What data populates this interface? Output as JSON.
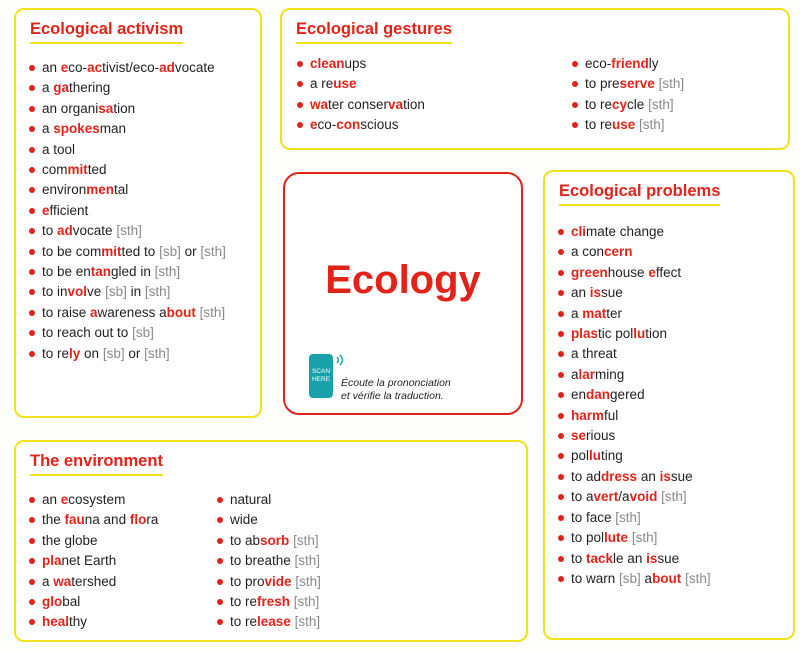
{
  "center": {
    "title": "Ecology",
    "scan": "SCAN HERE",
    "note": [
      "Écoute la prononciation",
      "et vérifie la traduction."
    ]
  },
  "sections": [
    {
      "title": "Ecological activism",
      "columns": [
        [
          [
            {
              "p": "an "
            },
            {
              "r": "e"
            },
            {
              "p": "co-"
            },
            {
              "r": "ac"
            },
            {
              "p": "tivist/eco-"
            },
            {
              "r": "ad"
            },
            {
              "p": "vocate"
            }
          ],
          [
            {
              "p": "a "
            },
            {
              "r": "ga"
            },
            {
              "p": "thering"
            }
          ],
          [
            {
              "p": "an organi"
            },
            {
              "r": "sa"
            },
            {
              "p": "tion"
            }
          ],
          [
            {
              "p": "a "
            },
            {
              "r": "spokes"
            },
            {
              "p": "man"
            }
          ],
          [
            {
              "p": "a tool"
            }
          ],
          [
            {
              "p": "com"
            },
            {
              "r": "mit"
            },
            {
              "p": "ted"
            }
          ],
          [
            {
              "p": "environ"
            },
            {
              "r": "men"
            },
            {
              "p": "tal"
            }
          ],
          [
            {
              "r": "e"
            },
            {
              "p": "fficient"
            }
          ],
          [
            {
              "p": "to "
            },
            {
              "r": "ad"
            },
            {
              "p": "vocate "
            },
            {
              "g": "[sth]"
            }
          ],
          [
            {
              "p": "to be com"
            },
            {
              "r": "mit"
            },
            {
              "p": "ted to "
            },
            {
              "g": "[sb]"
            },
            {
              "p": " or "
            },
            {
              "g": "[sth]"
            }
          ],
          [
            {
              "p": "to be en"
            },
            {
              "r": "tan"
            },
            {
              "p": "gled in "
            },
            {
              "g": "[sth]"
            }
          ],
          [
            {
              "p": "to in"
            },
            {
              "r": "vol"
            },
            {
              "p": "ve "
            },
            {
              "g": "[sb]"
            },
            {
              "p": " in "
            },
            {
              "g": "[sth]"
            }
          ],
          [
            {
              "p": "to raise "
            },
            {
              "r": "a"
            },
            {
              "p": "wareness a"
            },
            {
              "r": "bout"
            },
            {
              "p": " "
            },
            {
              "g": "[sth]"
            }
          ],
          [
            {
              "p": "to reach out to "
            },
            {
              "g": "[sb]"
            }
          ],
          [
            {
              "p": "to re"
            },
            {
              "r": "ly"
            },
            {
              "p": " on "
            },
            {
              "g": "[sb]"
            },
            {
              "p": " or "
            },
            {
              "g": "[sth]"
            }
          ]
        ]
      ]
    },
    {
      "title": "Ecological gestures",
      "columns": [
        [
          [
            {
              "r": "clean"
            },
            {
              "p": "ups"
            }
          ],
          [
            {
              "p": "a re"
            },
            {
              "r": "use"
            }
          ],
          [
            {
              "r": "wa"
            },
            {
              "p": "ter conser"
            },
            {
              "r": "va"
            },
            {
              "p": "tion"
            }
          ],
          [
            {
              "r": "e"
            },
            {
              "p": "co-"
            },
            {
              "r": "con"
            },
            {
              "p": "scious"
            }
          ]
        ],
        [
          [
            {
              "p": "eco-"
            },
            {
              "r": "friend"
            },
            {
              "p": "ly"
            }
          ],
          [
            {
              "p": "to pre"
            },
            {
              "r": "serve"
            },
            {
              "p": " "
            },
            {
              "g": "[sth]"
            }
          ],
          [
            {
              "p": "to re"
            },
            {
              "r": "cy"
            },
            {
              "p": "cle "
            },
            {
              "g": "[sth]"
            }
          ],
          [
            {
              "p": "to re"
            },
            {
              "r": "use"
            },
            {
              "p": " "
            },
            {
              "g": "[sth]"
            }
          ]
        ]
      ]
    },
    {
      "title": "Ecological problems",
      "columns": [
        [
          [
            {
              "r": "cli"
            },
            {
              "p": "mate change"
            }
          ],
          [
            {
              "p": "a con"
            },
            {
              "r": "cern"
            }
          ],
          [
            {
              "r": "green"
            },
            {
              "p": "house "
            },
            {
              "r": "e"
            },
            {
              "p": "ffect"
            }
          ],
          [
            {
              "p": "an "
            },
            {
              "r": "is"
            },
            {
              "p": "sue"
            }
          ],
          [
            {
              "p": "a "
            },
            {
              "r": "mat"
            },
            {
              "p": "ter"
            }
          ],
          [
            {
              "r": "plas"
            },
            {
              "p": "tic pol"
            },
            {
              "r": "lu"
            },
            {
              "p": "tion"
            }
          ],
          [
            {
              "p": "a threat"
            }
          ],
          [
            {
              "p": "a"
            },
            {
              "r": "lar"
            },
            {
              "p": "ming"
            }
          ],
          [
            {
              "p": "en"
            },
            {
              "r": "dan"
            },
            {
              "p": "gered"
            }
          ],
          [
            {
              "r": "harm"
            },
            {
              "p": "ful"
            }
          ],
          [
            {
              "r": "se"
            },
            {
              "p": "rious"
            }
          ],
          [
            {
              "p": "pol"
            },
            {
              "r": "lu"
            },
            {
              "p": "ting"
            }
          ],
          [
            {
              "p": "to ad"
            },
            {
              "r": "dress"
            },
            {
              "p": " an "
            },
            {
              "r": "is"
            },
            {
              "p": "sue"
            }
          ],
          [
            {
              "p": "to a"
            },
            {
              "r": "vert"
            },
            {
              "p": "/a"
            },
            {
              "r": "void"
            },
            {
              "p": " "
            },
            {
              "g": "[sth]"
            }
          ],
          [
            {
              "p": "to face "
            },
            {
              "g": "[sth]"
            }
          ],
          [
            {
              "p": "to pol"
            },
            {
              "r": "lute"
            },
            {
              "p": " "
            },
            {
              "g": "[sth]"
            }
          ],
          [
            {
              "p": "to "
            },
            {
              "r": "tack"
            },
            {
              "p": "le an "
            },
            {
              "r": "is"
            },
            {
              "p": "sue"
            }
          ],
          [
            {
              "p": "to warn "
            },
            {
              "g": "[sb]"
            },
            {
              "p": " a"
            },
            {
              "r": "bout"
            },
            {
              "p": " "
            },
            {
              "g": "[sth]"
            }
          ]
        ]
      ]
    },
    {
      "title": "The environment",
      "columns": [
        [
          [
            {
              "p": "an "
            },
            {
              "r": "e"
            },
            {
              "p": "cosystem"
            }
          ],
          [
            {
              "p": "the "
            },
            {
              "r": "fau"
            },
            {
              "p": "na and "
            },
            {
              "r": "flo"
            },
            {
              "p": "ra"
            }
          ],
          [
            {
              "p": "the globe"
            }
          ],
          [
            {
              "r": "pla"
            },
            {
              "p": "net Earth"
            }
          ],
          [
            {
              "p": "a "
            },
            {
              "r": "wa"
            },
            {
              "p": "tershed"
            }
          ],
          [
            {
              "r": "glo"
            },
            {
              "p": "bal"
            }
          ],
          [
            {
              "r": "heal"
            },
            {
              "p": "thy"
            }
          ]
        ],
        [
          [
            {
              "p": "natural"
            }
          ],
          [
            {
              "p": "wide"
            }
          ],
          [
            {
              "p": "to ab"
            },
            {
              "r": "sorb"
            },
            {
              "p": " "
            },
            {
              "g": "[sth]"
            }
          ],
          [
            {
              "p": "to breathe "
            },
            {
              "g": "[sth]"
            }
          ],
          [
            {
              "p": "to pro"
            },
            {
              "r": "vide"
            },
            {
              "p": " "
            },
            {
              "g": "[sth]"
            }
          ],
          [
            {
              "p": "to re"
            },
            {
              "r": "fresh"
            },
            {
              "p": " "
            },
            {
              "g": "[sth]"
            }
          ],
          [
            {
              "p": "to re"
            },
            {
              "r": "lease"
            },
            {
              "p": " "
            },
            {
              "g": "[sth]"
            }
          ]
        ]
      ]
    }
  ]
}
